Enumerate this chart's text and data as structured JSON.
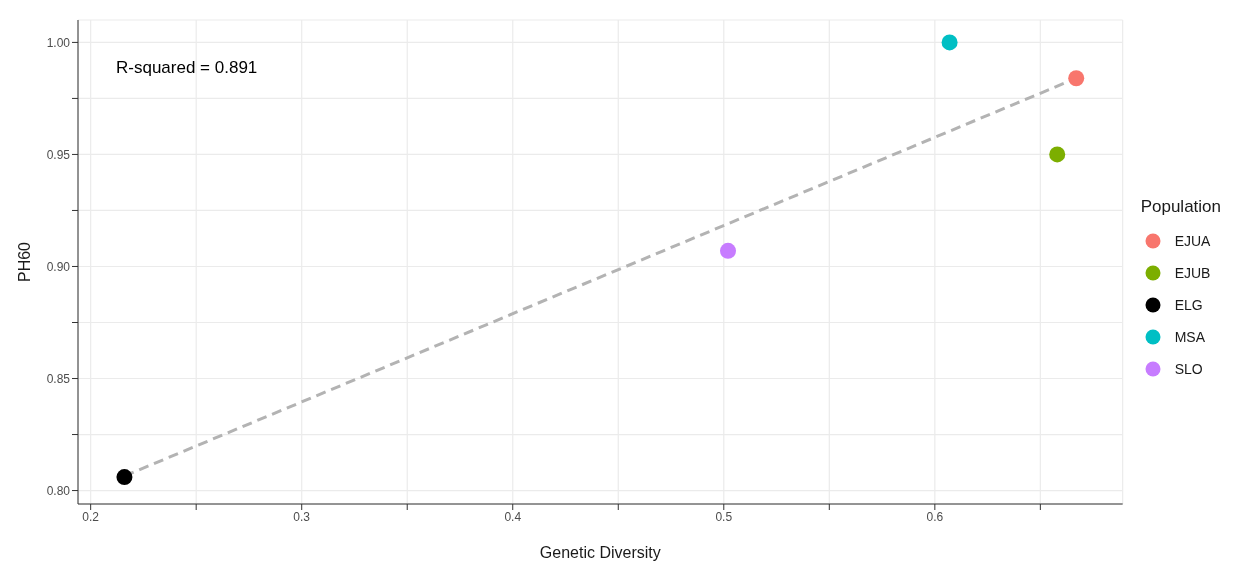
{
  "chart_data": {
    "type": "scatter",
    "xlabel": "Genetic Diversity",
    "ylabel": "PH60",
    "legend_title": "Population",
    "annotations": [
      "R-squared = 0.891"
    ],
    "xlim": [
      0.194,
      0.689
    ],
    "xticks": [
      0.2,
      {
        "value": 0.25,
        "label": null
      },
      0.3,
      {
        "value": 0.35,
        "label": null
      },
      0.4,
      {
        "value": 0.45,
        "label": null
      },
      0.5,
      {
        "value": 0.55,
        "label": null
      },
      0.6,
      {
        "value": 0.65,
        "label": null
      }
    ],
    "ylim": [
      0.794,
      1.01
    ],
    "yticks": [
      {
        "value": 0.8,
        "label": "0.80"
      },
      {
        "value": 0.825,
        "label": null
      },
      {
        "value": 0.85,
        "label": "0.85"
      },
      {
        "value": 0.875,
        "label": null
      },
      {
        "value": 0.9,
        "label": "0.90"
      },
      {
        "value": 0.925,
        "label": null
      },
      {
        "value": 0.95,
        "label": "0.95"
      },
      {
        "value": 0.975,
        "label": null
      },
      {
        "value": 1.0,
        "label": "1.00"
      }
    ],
    "grid": true,
    "legend": "right",
    "marker": "circle",
    "series": [
      {
        "name": "EJUA",
        "color": "#f8766d",
        "x": [
          0.667
        ],
        "values": [
          0.984
        ]
      },
      {
        "name": "EJUB",
        "color": "#7cae00",
        "x": [
          0.658
        ],
        "values": [
          0.95
        ]
      },
      {
        "name": "ELG",
        "color": "#000000",
        "x": [
          0.216
        ],
        "values": [
          0.806
        ]
      },
      {
        "name": "MSA",
        "color": "#00bfc4",
        "x": [
          0.607
        ],
        "values": [
          1.0
        ]
      },
      {
        "name": "SLO",
        "color": "#c77cff",
        "x": [
          0.502
        ],
        "values": [
          0.907
        ]
      },
      {
        "type": "line",
        "color": "#b3b3b3",
        "line_style": "dashed",
        "marker": "none",
        "x": [
          0.216,
          0.667
        ],
        "values": [
          0.8065,
          0.984
        ]
      }
    ]
  }
}
